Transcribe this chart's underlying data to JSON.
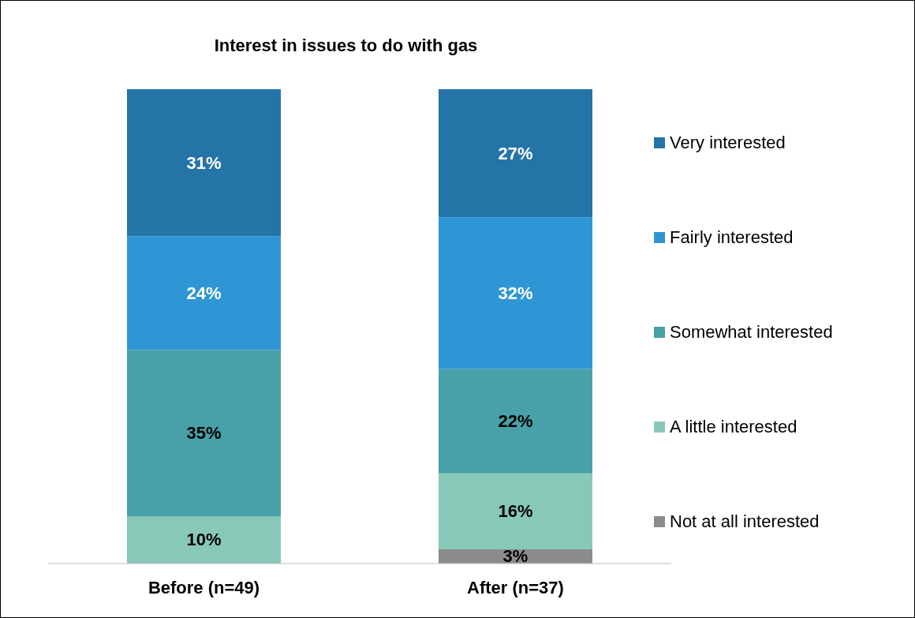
{
  "chart_data": {
    "type": "bar",
    "title": "Interest in issues to do with gas",
    "stacked": true,
    "legend": "right",
    "categories": [
      "Before (n=49)",
      "After (n=37)"
    ],
    "series": [
      {
        "name": "Not at all interested",
        "color": "#8c8c8c",
        "values": [
          null,
          3
        ],
        "value_labels": [
          null,
          "3%"
        ]
      },
      {
        "name": "A little interested",
        "color": "#88c8b8",
        "values": [
          10,
          16
        ],
        "value_labels": [
          "10%",
          "16%"
        ]
      },
      {
        "name": "Somewhat interested",
        "color": "#48a0a8",
        "values": [
          35,
          22
        ],
        "value_labels": [
          "35%",
          "22%"
        ]
      },
      {
        "name": "Fairly interested",
        "color": "#2e96d4",
        "values": [
          24,
          32
        ],
        "value_labels": [
          "24%",
          "32%"
        ]
      },
      {
        "name": "Very interested",
        "color": "#2474a8",
        "values": [
          31,
          27
        ],
        "value_labels": [
          "31%",
          "27%"
        ]
      }
    ]
  }
}
